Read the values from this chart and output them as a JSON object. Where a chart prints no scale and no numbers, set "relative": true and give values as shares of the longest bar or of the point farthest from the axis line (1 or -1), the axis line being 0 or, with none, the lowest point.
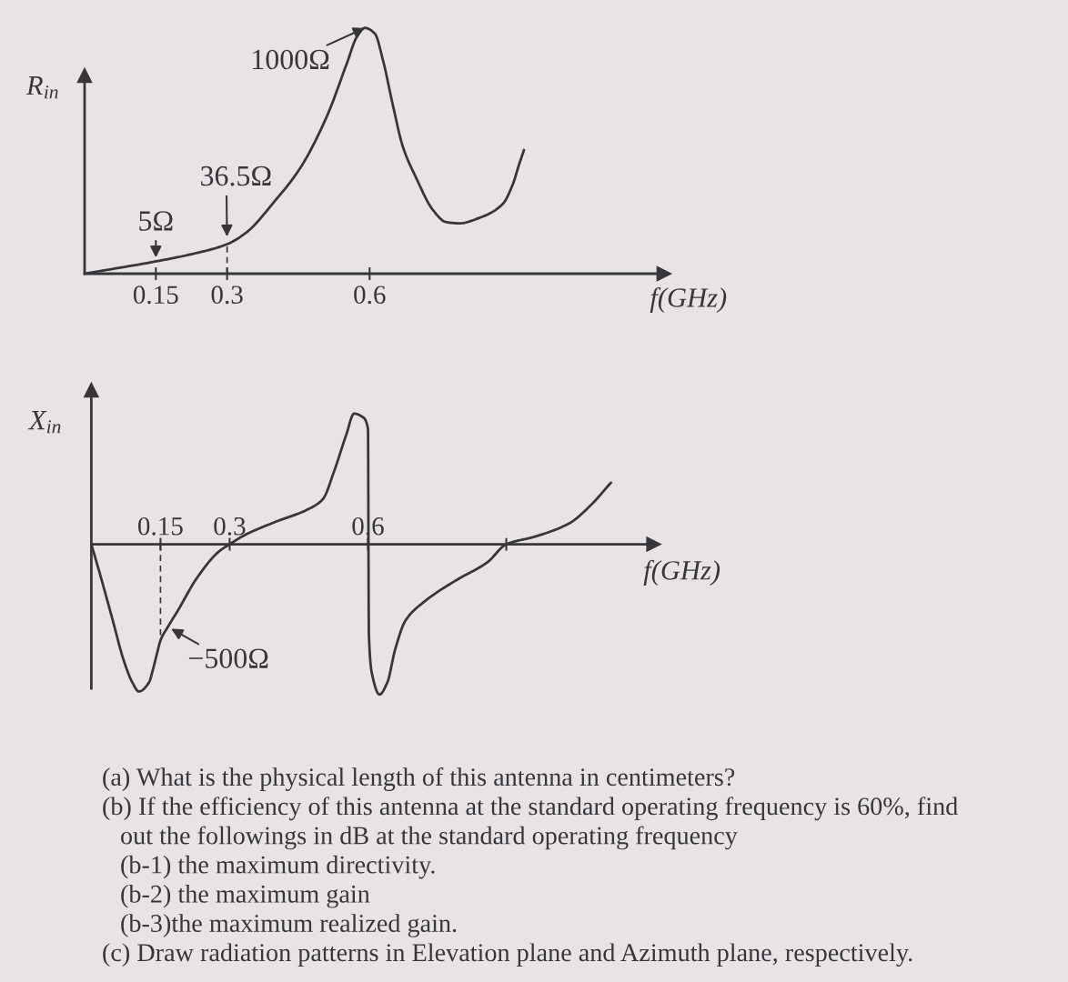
{
  "chart_data": [
    {
      "type": "line",
      "ylabel": "R$_{in}$",
      "xlabel": "f(GHz)",
      "relative": true,
      "tick_labels": "x",
      "xlim": [
        0,
        1.22
      ],
      "xticks": [
        0.15,
        0.3,
        0.6
      ],
      "series": [
        {
          "color": "#38363a",
          "x": [
            0,
            0.15,
            0.222,
            0.3,
            0.342,
            0.398,
            0.454,
            0.51,
            0.552,
            0.573,
            0.59,
            0.611,
            0.628,
            0.649,
            0.67,
            0.698,
            0.733,
            0.761,
            0.789,
            0.831,
            0.88,
            0.901,
            0.915,
            0.925
          ],
          "values": [
            0,
            0.05,
            0.078,
            0.12,
            0.17,
            0.29,
            0.43,
            0.64,
            0.855,
            0.963,
            1.0,
            0.977,
            0.87,
            0.686,
            0.517,
            0.39,
            0.26,
            0.21,
            0.205,
            0.227,
            0.283,
            0.361,
            0.446,
            0.503
          ]
        }
      ],
      "ref_lines": [
        {
          "axis": "x",
          "value": 0.3,
          "line_style": "dashed",
          "color": "#38363a"
        }
      ],
      "annotations": [
        {
          "text": "1000Ω",
          "x": 0.59,
          "y": 1.0
        },
        {
          "text": "36.5Ω",
          "x": 0.3,
          "y": 0.12
        },
        {
          "text": "5Ω",
          "x": 0.15,
          "y": 0.05
        }
      ]
    },
    {
      "type": "line",
      "ylabel": "X$_{in}$",
      "xlabel": "f(GHz)",
      "relative": true,
      "tick_labels": "x",
      "xlim": [
        0,
        1.22
      ],
      "xticks": [
        0.15,
        0.3,
        0.6,
        {
          "value": 0.9,
          "label": null
        }
      ],
      "series": [
        {
          "color": "#38363a",
          "x": [
            0,
            0.018,
            0.045,
            0.071,
            0.089,
            0.103,
            0.125,
            0.134,
            0.143,
            0.15,
            0.166,
            0.186,
            0.23,
            0.276,
            0.3,
            0.332,
            0.4,
            0.468,
            0.502,
            0.527,
            0.553,
            0.57,
            0.587,
            0.6,
            0.602,
            0.61,
            0.625,
            0.642,
            0.659,
            0.681,
            0.723,
            0.791,
            0.859,
            0.9,
            0.961,
            1.037,
            1.08,
            1.127
          ],
          "values": [
            0,
            -0.19,
            -0.49,
            -0.78,
            -0.92,
            -0.98,
            -0.92,
            -0.83,
            -0.72,
            -0.64,
            -0.55,
            -0.45,
            -0.22,
            -0.05,
            0,
            0.06,
            0.15,
            0.23,
            0.3,
            0.49,
            0.73,
            0.87,
            0.85,
            0.77,
            -0.6,
            -0.88,
            -1.0,
            -0.92,
            -0.7,
            -0.51,
            -0.38,
            -0.24,
            -0.12,
            0,
            0.05,
            0.14,
            0.25,
            0.41
          ]
        }
      ],
      "ref_lines": [
        {
          "axis": "x",
          "value": 0.15,
          "line_style": "dashed",
          "color": "#38363a"
        }
      ],
      "annotations": [
        {
          "text": "−500Ω",
          "x": 0.166,
          "y": -0.55
        },
        "(a) What is the physical length of this antenna in centimeters?",
        "(b) If the efficiency of this antenna at the standard operating frequency is 60%, find\nout the followings in dB at the standard operating frequency",
        "(b-1) the maximum directivity.",
        "(b-2) the maximum gain",
        "(b-3)the maximum realized gain.",
        "(c) Draw radiation patterns in Elevation plane and Azimuth plane, respectively."
      ]
    }
  ]
}
